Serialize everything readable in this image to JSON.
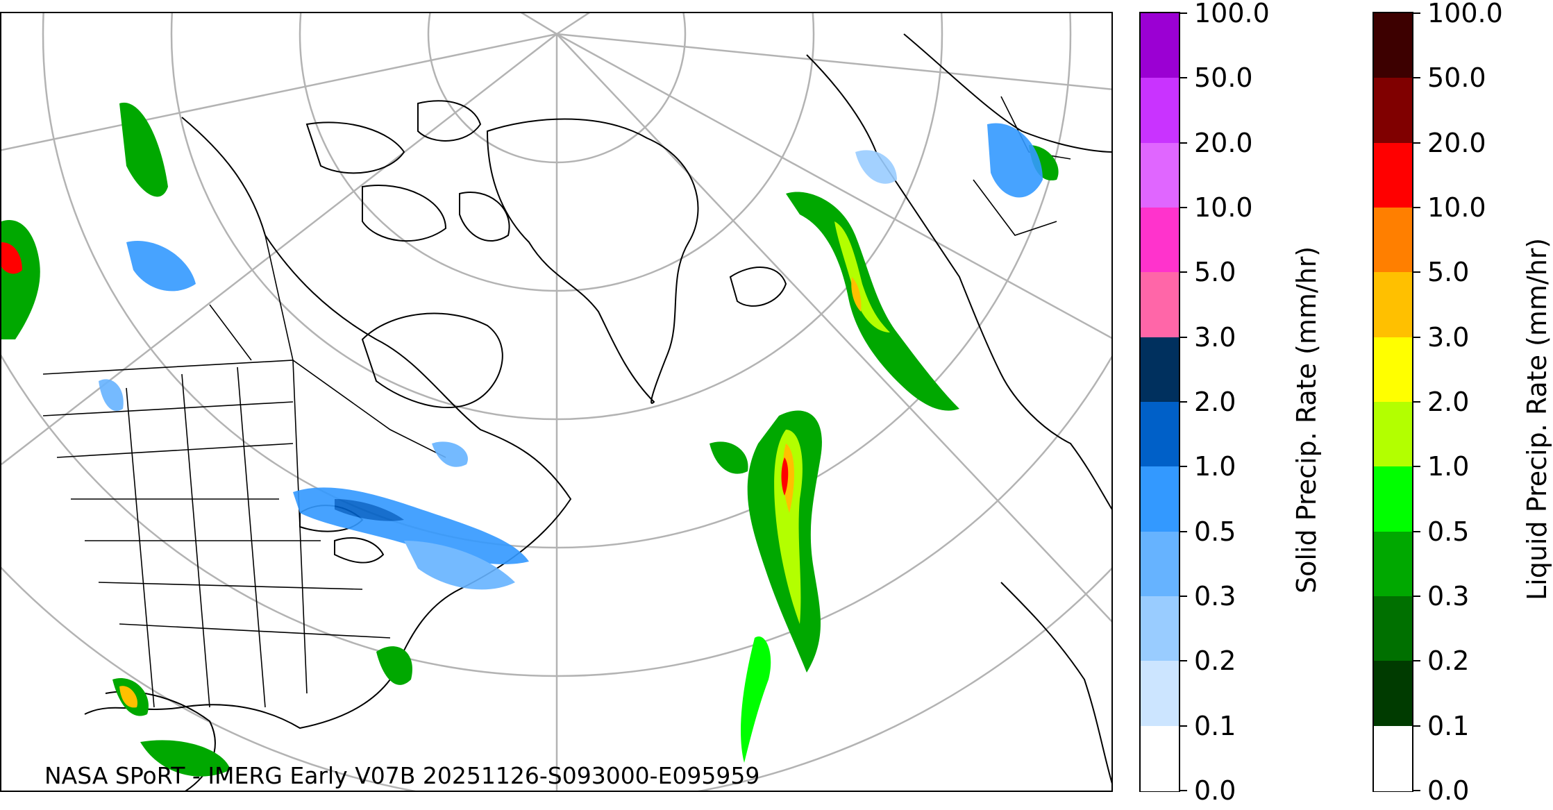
{
  "credit": "NASA SPoRT - IMERG Early V07B 20251126-S093000-E095959",
  "solid_colorbar": {
    "title": "Solid Precip. Rate (mm/hr)",
    "ticks": [
      "100.0",
      "50.0",
      "20.0",
      "10.0",
      "5.0",
      "3.0",
      "2.0",
      "1.0",
      "0.5",
      "0.3",
      "0.2",
      "0.1",
      "0.0"
    ],
    "colors": [
      "#9b00d3",
      "#c933ff",
      "#e066ff",
      "#ff33cc",
      "#ff66a8",
      "#00305e",
      "#0060c8",
      "#3399ff",
      "#66b3ff",
      "#99ccff",
      "#cce5ff",
      "#ffffff"
    ]
  },
  "liquid_colorbar": {
    "title": "Liquid Precip. Rate (mm/hr)",
    "ticks": [
      "100.0",
      "50.0",
      "20.0",
      "10.0",
      "5.0",
      "3.0",
      "2.0",
      "1.0",
      "0.5",
      "0.3",
      "0.2",
      "0.1",
      "0.0"
    ],
    "colors": [
      "#3d0000",
      "#800000",
      "#ff0000",
      "#ff7f00",
      "#ffc000",
      "#ffff00",
      "#b3ff00",
      "#00ff00",
      "#00a800",
      "#007000",
      "#003b00",
      "#ffffff"
    ]
  },
  "map": {
    "projection": "polar stereographic (North America / North Atlantic)",
    "graticule": true
  }
}
